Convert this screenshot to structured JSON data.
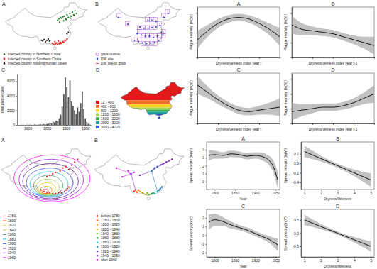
{
  "chart_data": [
    {
      "type": "map",
      "title": "A",
      "series": [
        {
          "name": "infected county in Northern China",
          "color": "#1e7b1e",
          "marker": "circle",
          "lon": [
            112,
            113,
            114,
            115,
            116,
            117,
            118,
            119,
            120,
            121,
            122,
            123,
            124,
            125,
            126,
            113.5,
            116.5,
            118.5,
            121.5,
            124.5
          ],
          "lat": [
            40,
            41,
            42,
            41.5,
            42.5,
            43,
            41,
            44,
            42,
            45,
            43,
            46,
            44,
            47,
            45,
            38.5,
            39.5,
            40.5,
            41.5,
            43.5
          ]
        },
        {
          "name": "infected county in Southern China",
          "color": "#e01b1b",
          "marker": "circle",
          "lon": [
            109,
            110,
            110.5,
            111,
            112,
            113,
            113.5,
            114,
            115,
            116,
            116.5,
            117,
            118,
            119,
            108,
            110,
            112.5,
            114.5
          ],
          "lat": [
            22,
            21.8,
            22.5,
            23,
            22,
            23,
            22.5,
            23.5,
            23,
            24,
            23.5,
            25,
            25,
            26,
            22.8,
            24,
            24.5,
            22.8
          ]
        },
        {
          "name": "infected county missing human cases",
          "color": "#111111",
          "marker": "circle",
          "lon": [
            100,
            101,
            102,
            103,
            104,
            105,
            106,
            119,
            120
          ],
          "lat": [
            25,
            24.5,
            25.5,
            24,
            25,
            26,
            24.5,
            30,
            31
          ]
        }
      ]
    },
    {
      "type": "grid_map",
      "title": "B",
      "series": [
        {
          "name": "grids outline",
          "color": "#9b30c8",
          "marker": "square"
        },
        {
          "name": "DW site",
          "color": "#2b4fd6",
          "marker": "circle",
          "lon": [
            100,
            103,
            106,
            109,
            112,
            115,
            118,
            121,
            102,
            105,
            108,
            111,
            114,
            117,
            120,
            104,
            107,
            110,
            113,
            116,
            119,
            110,
            113,
            116,
            122,
            125,
            88,
            95
          ],
          "lat": [
            25,
            24,
            23,
            22.5,
            23,
            23.5,
            25,
            29,
            30,
            29,
            28,
            28,
            27,
            28,
            31,
            35,
            34,
            34,
            34.5,
            35,
            36,
            40,
            40,
            39,
            42,
            45,
            42,
            37
          ]
        },
        {
          "name": "DW site to grids",
          "color": "#e0302a",
          "line_style": "solid"
        }
      ]
    },
    {
      "type": "histogram",
      "title": "C",
      "ylabel": "total plague case",
      "color": "#555555",
      "bins": [
        1772,
        1776,
        1780,
        1784,
        1788,
        1792,
        1796,
        1800,
        1804,
        1808,
        1812,
        1816,
        1820,
        1824,
        1828,
        1832,
        1836,
        1840,
        1844,
        1848,
        1852,
        1856,
        1860,
        1864,
        1868,
        1872,
        1876,
        1880,
        1884,
        1888,
        1892,
        1896,
        1900,
        1904,
        1908,
        1912,
        1916,
        1920,
        1924,
        1928,
        1932,
        1936,
        1940,
        1944,
        1948,
        1952,
        1956,
        1960,
        1964
      ],
      "values": [
        5,
        0,
        10,
        20,
        15,
        0,
        30,
        10,
        40,
        20,
        10,
        60,
        30,
        20,
        50,
        80,
        40,
        100,
        60,
        120,
        150,
        300,
        200,
        450,
        350,
        600,
        500,
        900,
        1400,
        2500,
        4200,
        6500,
        5200,
        3800,
        6100,
        3200,
        2600,
        2000,
        1500,
        2400,
        1800,
        3000,
        4600,
        2200,
        900,
        400,
        150,
        50
      ],
      "xlim": [
        1772,
        1964
      ],
      "ylim": [
        0,
        7000
      ],
      "xticks": [
        1800,
        1850,
        1900,
        1950
      ],
      "yticks": [
        0,
        2000,
        4000,
        6000
      ]
    },
    {
      "type": "choropleth",
      "title": "D",
      "classes": [
        {
          "label": "12 - 400",
          "color": "#e31a1c"
        },
        {
          "label": "400 - 800",
          "color": "#f46d2a"
        },
        {
          "label": "800 - 1200",
          "color": "#fdd21c"
        },
        {
          "label": "1200 - 1600",
          "color": "#a6d854"
        },
        {
          "label": "1600 - 2000",
          "color": "#3cb44b"
        },
        {
          "label": "2000 - 3000",
          "color": "#1b9e9e"
        },
        {
          "label": "3000 - 4220",
          "color": "#2c5fd6"
        }
      ],
      "lat_edges": [
        54,
        36,
        32,
        29,
        27,
        25,
        23,
        17
      ]
    },
    {
      "type": "contour",
      "title": "A",
      "levels": [
        1780,
        1800,
        1820,
        1840,
        1860,
        1880,
        1900,
        1920,
        1940,
        1960
      ],
      "colors": [
        "#ff0000",
        "#ff7f00",
        "#e6c800",
        "#9acd32",
        "#2e8b57",
        "#00bcd4",
        "#1e3cff",
        "#4b0082",
        "#9400d3",
        "#ff00ff"
      ],
      "contours": {
        "center_lon": [
          103,
          103.5,
          104,
          104.5,
          105,
          105.5,
          106,
          106.5,
          107,
          107.5
        ],
        "center_lat": [
          24,
          25,
          26,
          27,
          28,
          29,
          30,
          31,
          32,
          33
        ],
        "radius_lon": [
          2,
          4,
          6,
          8,
          10,
          13,
          16,
          19,
          22,
          26
        ],
        "radius_lat": [
          1.5,
          2.5,
          4,
          5.5,
          7,
          8.5,
          10,
          12,
          14,
          16
        ]
      },
      "points": {
        "color": "#e01b1b",
        "lon": [
          100,
          102,
          104,
          106,
          108,
          110,
          112,
          113,
          114,
          116,
          117,
          118,
          119,
          110,
          113,
          115,
          117,
          119,
          121,
          123,
          125,
          104,
          106,
          108
        ],
        "lat": [
          25,
          24,
          23.5,
          23,
          22.5,
          22.5,
          23,
          24,
          23,
          24,
          25,
          26,
          27,
          37,
          38,
          40,
          41,
          39,
          42,
          44,
          46,
          34,
          35,
          36
        ]
      }
    },
    {
      "type": "spread_map",
      "title": "B",
      "classes": [
        {
          "label": "before 1780",
          "color": "#e41a1c"
        },
        {
          "label": "1780 - 1800",
          "color": "#ff5a1f"
        },
        {
          "label": "1800 - 1820",
          "color": "#ff9f1c"
        },
        {
          "label": "1820 - 1840",
          "color": "#c8a000"
        },
        {
          "label": "1840 - 1860",
          "color": "#7fbf3f"
        },
        {
          "label": "1860 - 1880",
          "color": "#2ca02c"
        },
        {
          "label": "1880 - 1900",
          "color": "#17becf"
        },
        {
          "label": "1900 - 1920",
          "color": "#1f77b4"
        },
        {
          "label": "1920 - 1940",
          "color": "#3f3fbf"
        },
        {
          "label": "1940 - 1960",
          "color": "#7b2fbf"
        },
        {
          "label": "after 1960",
          "color": "#d62ad6"
        }
      ],
      "points": {
        "lon": [
          100,
          101,
          102,
          103,
          104,
          106,
          108,
          109,
          110,
          112,
          113,
          114,
          116,
          117,
          118,
          119,
          112,
          114,
          116,
          118,
          120,
          122,
          124,
          126,
          98,
          96,
          92,
          100,
          88,
          104
        ],
        "lat": [
          24,
          25,
          23.5,
          25,
          24,
          23,
          22,
          23,
          21.8,
          22.5,
          23,
          22.5,
          24,
          25,
          26,
          27,
          38,
          40,
          41,
          42,
          43,
          44,
          45,
          46,
          36,
          38,
          34,
          37,
          40,
          35
        ],
        "class": [
          0,
          0,
          1,
          1,
          2,
          3,
          3,
          4,
          4,
          5,
          5,
          6,
          6,
          7,
          7,
          7,
          7,
          8,
          8,
          8,
          9,
          9,
          9,
          9,
          9,
          10,
          10,
          10,
          10,
          9
        ]
      }
    },
    {
      "type": "line",
      "title": "A",
      "xlabel": "Dryness/vetness index year t",
      "ylabel": "Plague intensity (ln(N))",
      "color": "#000000",
      "x": [
        1,
        1.5,
        2,
        2.5,
        3,
        3.5,
        4,
        4.5,
        5
      ],
      "values": [
        0.2,
        0.8,
        1.3,
        1.6,
        1.7,
        1.6,
        1.3,
        0.9,
        0.4
      ],
      "lower": [
        -0.4,
        0.4,
        1.0,
        1.35,
        1.45,
        1.35,
        1.0,
        0.5,
        -0.2
      ],
      "upper": [
        0.8,
        1.2,
        1.6,
        1.85,
        1.95,
        1.85,
        1.6,
        1.3,
        1.0
      ],
      "xlim": [
        1,
        5
      ],
      "ylim": [
        -1,
        2.4
      ],
      "xticks": [
        1,
        2,
        3,
        4,
        5
      ],
      "yticks": [
        -1,
        0,
        1,
        2
      ],
      "tick_labels": false
    },
    {
      "type": "line",
      "title": "B",
      "xlabel": "Dryness/vetness index year t-1",
      "ylabel": "Plague intensity (ln(N))",
      "color": "#000000",
      "x": [
        1,
        1.5,
        2,
        2.5,
        3,
        3.5,
        4,
        4.5,
        5
      ],
      "values": [
        1.2,
        0.9,
        0.8,
        0.7,
        0.6,
        0.4,
        0.2,
        0.0,
        -0.2
      ],
      "lower": [
        0.6,
        0.5,
        0.5,
        0.45,
        0.35,
        0.15,
        -0.1,
        -0.4,
        -0.8
      ],
      "upper": [
        1.8,
        1.3,
        1.1,
        0.95,
        0.85,
        0.65,
        0.5,
        0.4,
        0.4
      ],
      "xlim": [
        1,
        5
      ],
      "ylim": [
        -1,
        2.4
      ],
      "xticks": [
        1,
        2,
        3,
        4,
        5
      ],
      "yticks": [
        -1,
        0,
        1,
        2
      ],
      "tick_labels": false
    },
    {
      "type": "line",
      "title": "C",
      "xlabel": "Dryness/vetness index year t",
      "ylabel": "Plague intensity (ln(N))",
      "color": "#000000",
      "x": [
        1,
        1.5,
        2,
        2.5,
        3,
        3.5,
        4,
        4.5,
        5
      ],
      "values": [
        1.6,
        1.1,
        0.6,
        0.2,
        -0.1,
        -0.2,
        -0.1,
        0.0,
        0.1
      ],
      "lower": [
        1.0,
        0.7,
        0.3,
        -0.05,
        -0.35,
        -0.45,
        -0.4,
        -0.4,
        -0.5
      ],
      "upper": [
        2.2,
        1.5,
        0.9,
        0.45,
        0.15,
        0.05,
        0.2,
        0.4,
        0.7
      ],
      "xlim": [
        1,
        5
      ],
      "ylim": [
        -1,
        2.4
      ],
      "xticks": [
        1,
        2,
        3,
        4,
        5
      ],
      "yticks": [
        -1,
        0,
        1,
        2
      ],
      "tick_labels": false
    },
    {
      "type": "line",
      "title": "D",
      "xlabel": "Dryness/vetness index year t-1",
      "ylabel": "Plague intensity (ln(N))",
      "color": "#000000",
      "x": [
        1,
        1.5,
        2,
        2.5,
        3,
        3.5,
        4,
        4.5,
        5
      ],
      "values": [
        -0.2,
        -0.1,
        0.0,
        0.1,
        0.1,
        0.2,
        0.4,
        0.7,
        1.0
      ],
      "lower": [
        -0.8,
        -0.5,
        -0.3,
        -0.15,
        -0.15,
        -0.05,
        0.1,
        0.3,
        0.4
      ],
      "upper": [
        0.4,
        0.3,
        0.3,
        0.35,
        0.35,
        0.45,
        0.7,
        1.1,
        1.6
      ],
      "xlim": [
        1,
        5
      ],
      "ylim": [
        -1,
        2.4
      ],
      "xticks": [
        1,
        2,
        3,
        4,
        5
      ],
      "yticks": [
        -1,
        0,
        1,
        2
      ],
      "tick_labels": false
    },
    {
      "type": "line",
      "title": "A",
      "xlabel": "Year",
      "ylabel": "Spread velocity (ln(V))",
      "color": "#000000",
      "x": [
        1785,
        1800,
        1820,
        1840,
        1860,
        1880,
        1900,
        1920,
        1935,
        1945,
        1955
      ],
      "values": [
        3.3,
        3.4,
        3.3,
        3.5,
        3.4,
        3.2,
        3.3,
        3.1,
        2.6,
        1.8,
        0.2
      ],
      "lower": [
        2.6,
        2.9,
        2.9,
        3.1,
        3.0,
        2.8,
        2.9,
        2.6,
        2.0,
        1.0,
        -0.9
      ],
      "upper": [
        4.0,
        3.9,
        3.7,
        3.9,
        3.8,
        3.6,
        3.7,
        3.6,
        3.2,
        2.6,
        1.3
      ],
      "xlim": [
        1780,
        1960
      ],
      "ylim": [
        -1,
        5
      ],
      "xticks": [
        1800,
        1850,
        1900,
        1950
      ],
      "yticks": [
        0,
        1,
        2,
        3,
        4
      ]
    },
    {
      "type": "line",
      "title": "B",
      "xlabel": "Dryness/Wetness",
      "ylabel": "Spread velocity (ln(V))",
      "color": "#000000",
      "x": [
        1,
        2,
        3,
        4,
        5
      ],
      "values": [
        0.25,
        0.1,
        -0.05,
        -0.2,
        -0.35
      ],
      "lower": [
        0.13,
        0.04,
        -0.09,
        -0.27,
        -0.49
      ],
      "upper": [
        0.37,
        0.16,
        -0.01,
        -0.13,
        -0.21
      ],
      "xlim": [
        0.8,
        5.2
      ],
      "ylim": [
        -0.55,
        0.45
      ],
      "xticks": [
        1,
        2,
        3,
        4,
        5
      ],
      "yticks": [
        {
          "value": -0.4,
          "label": "-0.4"
        },
        {
          "value": -0.2,
          "label": "-0.2"
        },
        {
          "value": 0,
          "label": "0.0"
        },
        {
          "value": 0.2,
          "label": "0.2"
        }
      ]
    },
    {
      "type": "line",
      "title": "C",
      "xlabel": "Year",
      "ylabel": "Spread velocity (ln(V))",
      "color": "#000000",
      "x": [
        1785,
        1800,
        1820,
        1840,
        1860,
        1880,
        1900,
        1920,
        1935,
        1945,
        1955
      ],
      "values": [
        1.5,
        1.8,
        1.6,
        1.2,
        0.9,
        0.6,
        0.2,
        -0.2,
        -0.5,
        -0.8,
        -1.1
      ],
      "lower": [
        0.6,
        1.1,
        1.1,
        0.8,
        0.6,
        0.3,
        -0.1,
        -0.5,
        -0.9,
        -1.3,
        -1.8
      ],
      "upper": [
        2.4,
        2.5,
        2.1,
        1.6,
        1.2,
        0.9,
        0.5,
        0.1,
        -0.1,
        -0.3,
        -0.4
      ],
      "xlim": [
        1780,
        1960
      ],
      "ylim": [
        -2.5,
        3
      ],
      "xticks": [
        1800,
        1850,
        1900,
        1950
      ],
      "yticks": [
        -2,
        -1,
        0,
        1,
        2
      ]
    },
    {
      "type": "line",
      "title": "D",
      "xlabel": "Dryness/Wetness",
      "ylabel": "Spread velocity (ln(V))",
      "color": "#000000",
      "x": [
        1,
        2,
        3,
        4,
        5
      ],
      "values": [
        0.5,
        0.25,
        0.0,
        -0.25,
        -0.5
      ],
      "lower": [
        0.3,
        0.15,
        -0.06,
        -0.35,
        -0.7
      ],
      "upper": [
        0.7,
        0.35,
        0.06,
        -0.15,
        -0.3
      ],
      "xlim": [
        0.8,
        5.2
      ],
      "ylim": [
        -0.9,
        0.9
      ],
      "xticks": [
        1,
        2,
        3,
        4,
        5
      ],
      "yticks": [
        {
          "value": -0.5,
          "label": "-0.5"
        },
        {
          "value": 0,
          "label": "0.0"
        },
        {
          "value": 0.5,
          "label": "0.5"
        }
      ]
    }
  ]
}
